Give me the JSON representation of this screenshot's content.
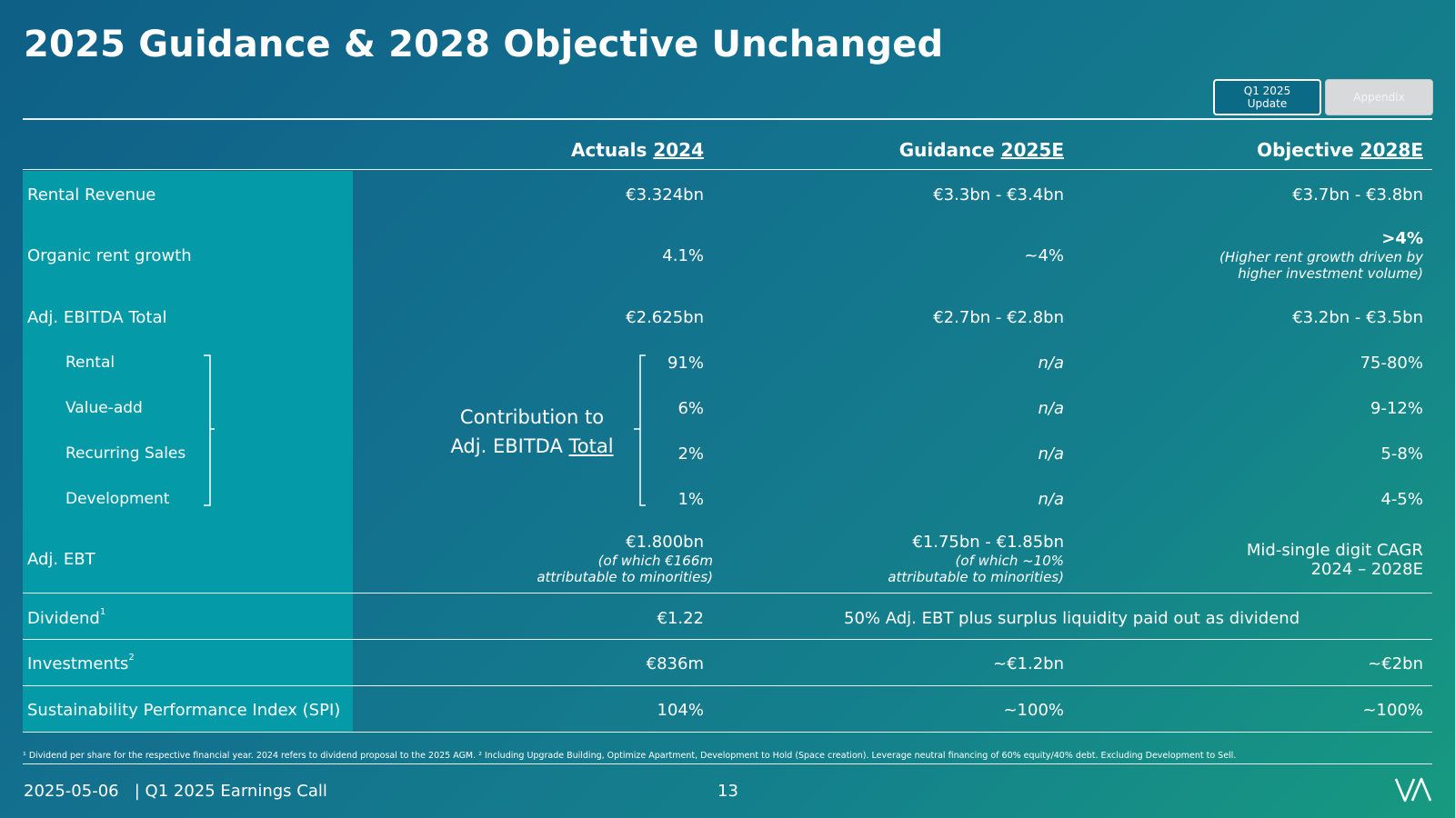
{
  "title": "2025 Guidance & 2028 Objective Unchanged",
  "tabs": {
    "q1": "Q1 2025 Update",
    "appendix": "Appendix"
  },
  "columns": [
    {
      "prefix": "Actuals ",
      "year": "2024"
    },
    {
      "prefix": "Guidance ",
      "year": "2025E"
    },
    {
      "prefix": "Objective ",
      "year": "2028E"
    }
  ],
  "rows": {
    "rental_revenue": {
      "label": "Rental Revenue",
      "actual": "€3.324bn",
      "guidance": "€3.3bn - €3.4bn",
      "objective": "€3.7bn - €3.8bn"
    },
    "organic_growth": {
      "label": "Organic rent growth",
      "actual": "4.1%",
      "guidance": "~4%",
      "objective": ">4%",
      "objective_note_1": "(Higher rent growth driven by",
      "objective_note_2": "higher investment volume)"
    },
    "ebitda": {
      "label": "Adj. EBITDA Total",
      "actual": "€2.625bn",
      "guidance": "€2.7bn - €2.8bn",
      "objective": "€3.2bn - €3.5bn"
    },
    "rental": {
      "label": "Rental",
      "actual": "91%",
      "guidance": "n/a",
      "objective": "75-80%"
    },
    "value_add": {
      "label": "Value-add",
      "actual": "6%",
      "guidance": "n/a",
      "objective": "9-12%"
    },
    "recurring_sales": {
      "label": "Recurring Sales",
      "actual": "2%",
      "guidance": "n/a",
      "objective": "5-8%"
    },
    "development": {
      "label": "Development",
      "actual": "1%",
      "guidance": "n/a",
      "objective": "4-5%"
    },
    "ebt": {
      "label": "Adj. EBT",
      "actual": "€1.800bn",
      "actual_note_1": "(of which €166m",
      "actual_note_2": "attributable to minorities)",
      "guidance": "€1.75bn - €1.85bn",
      "guidance_note_1": "(of which ~10%",
      "guidance_note_2": "attributable to minorities)",
      "objective_1": "Mid-single digit CAGR",
      "objective_2": "2024 – 2028E"
    },
    "dividend": {
      "label": "Dividend",
      "sup": "1",
      "actual": "€1.22",
      "span": "50% Adj. EBT plus surplus liquidity paid out as dividend"
    },
    "investments": {
      "label": "Investments",
      "sup": "2",
      "actual": "€836m",
      "guidance": "~€1.2bn",
      "objective": "~€2bn"
    },
    "spi": {
      "label": "Sustainability Performance Index (SPI)",
      "actual": "104%",
      "guidance": "~100%",
      "objective": "~100%"
    }
  },
  "contribution": {
    "line1": "Contribution to",
    "line2_prefix": "Adj. EBITDA ",
    "line2_underlined": "Total"
  },
  "footnote": "¹ Dividend per share for the respective financial year. 2024 refers to dividend proposal to the 2025 AGM. ² Including Upgrade Building, Optimize Apartment, Development to Hold (Space creation). Leverage neutral financing of 60% equity/40% debt. Excluding Development to Sell.",
  "footer": {
    "date_event": "2025-05-06   | Q1 2025 Earnings Call",
    "page": "13"
  },
  "colors": {
    "sidebar": "#049aa8",
    "tab_active": "#0b6a86",
    "tab_inactive": "#d7d9db"
  }
}
